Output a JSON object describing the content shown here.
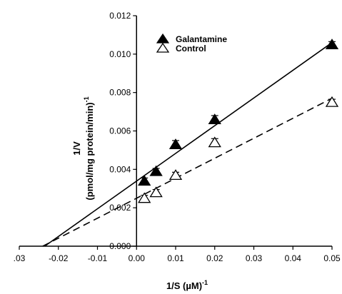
{
  "chart_data": {
    "type": "scatter",
    "title": "",
    "xlabel": "1/S (µM)",
    "xlabel_sup": "-1",
    "ylabel_line1": "1/V",
    "ylabel_line2": "(pmol/mg protein/min)",
    "ylabel_sup": "-1",
    "xlim": [
      -0.03,
      0.05
    ],
    "ylim": [
      0,
      0.012
    ],
    "xticks": [
      -0.03,
      -0.02,
      -0.01,
      0.0,
      0.01,
      0.02,
      0.03,
      0.04,
      0.05
    ],
    "xtick_labels": [
      ".03",
      "-0.02",
      "-0.01",
      "0.00",
      "0.01",
      "0.02",
      "0.03",
      "0.04",
      "0.05"
    ],
    "yticks": [
      0,
      0.002,
      0.004,
      0.006,
      0.008,
      0.01,
      0.012
    ],
    "ytick_labels": [
      "0.000",
      "0.002",
      "0.004",
      "0.006",
      "0.008",
      "0.010",
      "0.012"
    ],
    "grid": false,
    "legend_position": "top-left",
    "series": [
      {
        "name": "Galantamine",
        "marker": "filled-triangle",
        "line": "solid",
        "x": [
          0.002,
          0.005,
          0.01,
          0.02,
          0.05
        ],
        "y": [
          0.0034,
          0.0039,
          0.0053,
          0.0066,
          0.0105
        ],
        "err": [
          0.00015,
          0.00015,
          0.0002,
          0.0002,
          0.00015
        ],
        "fit": {
          "x": [
            -0.0235,
            0.05
          ],
          "y": [
            0.0,
            0.0106
          ]
        }
      },
      {
        "name": "Control",
        "marker": "open-triangle",
        "line": "dashed",
        "x": [
          0.002,
          0.005,
          0.01,
          0.02,
          0.05
        ],
        "y": [
          0.0025,
          0.0028,
          0.0037,
          0.0054,
          0.0075
        ],
        "err": [
          0.00015,
          0.00015,
          0.00015,
          0.0002,
          0.00015
        ],
        "fit": {
          "x": [
            -0.024,
            0.05
          ],
          "y": [
            0.0,
            0.0077
          ]
        }
      }
    ]
  }
}
